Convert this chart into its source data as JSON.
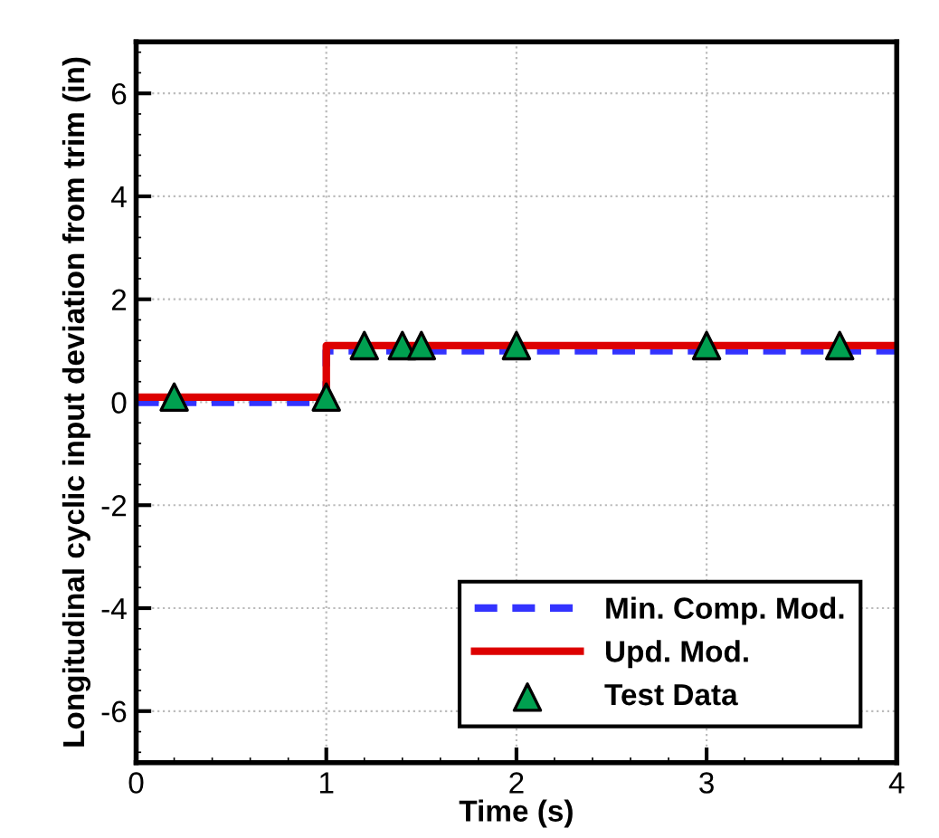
{
  "chart_data": {
    "type": "line",
    "xlabel": "Time (s)",
    "ylabel": "Longitudinal cyclic input deviation from trim (in)",
    "xlim": [
      0,
      4
    ],
    "ylim": [
      -7,
      7
    ],
    "xticks": [
      0,
      1,
      2,
      3,
      4
    ],
    "yticks": [
      -6,
      -4,
      -2,
      0,
      2,
      4,
      6
    ],
    "grid": true,
    "legend": "bottom right",
    "series": [
      {
        "name": "Min. Comp. Mod.",
        "line_style": "dashed",
        "marker": "none",
        "color": "#3333ff",
        "x": [
          0,
          1,
          1,
          4
        ],
        "values": [
          0,
          0,
          1.0,
          1.0
        ]
      },
      {
        "name": "Upd. Mod.",
        "line_style": "solid",
        "marker": "none",
        "color": "#dd0000",
        "x": [
          0,
          1,
          1,
          4
        ],
        "values": [
          0.1,
          0.1,
          1.1,
          1.1
        ]
      },
      {
        "name": "Test Data",
        "type": "scatter",
        "marker": "triangle",
        "color": "#00a050",
        "x": [
          0.2,
          1.0,
          1.2,
          1.4,
          1.5,
          2.0,
          3.0,
          3.7
        ],
        "values": [
          0.1,
          0.1,
          1.1,
          1.1,
          1.1,
          1.1,
          1.1,
          1.1
        ]
      }
    ]
  }
}
